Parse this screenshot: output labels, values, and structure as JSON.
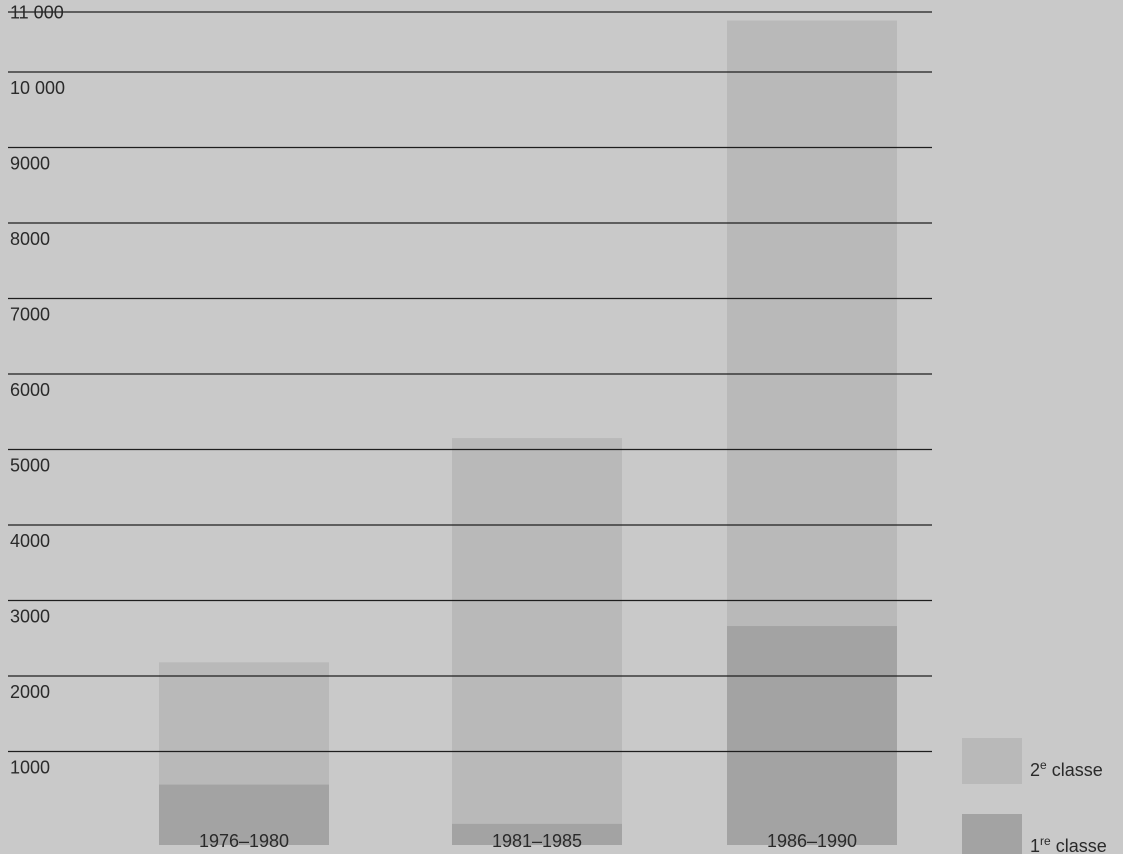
{
  "chart_data": {
    "type": "bar",
    "stacked": false,
    "overlap": true,
    "categories": [
      "1976–1980",
      "1981–1985",
      "1986–1990"
    ],
    "series": [
      {
        "name": "2e classe",
        "name_base": "2",
        "name_sup": "e",
        "name_rest": " classe",
        "color": "#b9b9b9",
        "values": [
          2420,
          5390,
          10920
        ]
      },
      {
        "name": "1re classe",
        "name_base": "1",
        "name_sup": "re",
        "name_rest": " classe",
        "color": "#a3a3a3",
        "values": [
          800,
          280,
          2900
        ]
      }
    ],
    "y_ticks": [
      "1000",
      "2000",
      "3000",
      "4000",
      "5000",
      "6000",
      "7000",
      "8000",
      "9000",
      "10 000",
      "11 000"
    ],
    "ylim": [
      0,
      11000
    ],
    "grid": true,
    "legend": "bottom-right",
    "colors": {
      "background": "#c9c9c9",
      "gridline": "#1e1e1e",
      "text": "#2a2a2a"
    }
  }
}
